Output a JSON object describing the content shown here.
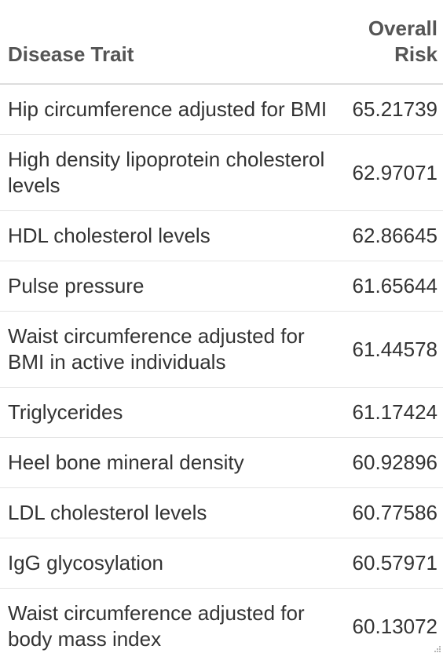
{
  "table": {
    "headers": {
      "trait": "Disease Trait",
      "risk_line1": "Overall",
      "risk_line2": "Risk"
    },
    "rows": [
      {
        "trait": "Hip circumference adjusted for BMI",
        "risk": "65.21739"
      },
      {
        "trait": "High density lipoprotein cholesterol levels",
        "risk": "62.97071"
      },
      {
        "trait": "HDL cholesterol levels",
        "risk": "62.86645"
      },
      {
        "trait": "Pulse pressure",
        "risk": "61.65644"
      },
      {
        "trait": "Waist circumference adjusted for BMI in active individuals",
        "risk": "61.44578"
      },
      {
        "trait": "Triglycerides",
        "risk": "61.17424"
      },
      {
        "trait": "Heel bone mineral density",
        "risk": "60.92896"
      },
      {
        "trait": "LDL cholesterol levels",
        "risk": "60.77586"
      },
      {
        "trait": "IgG glycosylation",
        "risk": "60.57971"
      },
      {
        "trait": "Waist circumference adjusted for body mass index",
        "risk": "60.13072"
      }
    ]
  },
  "icons": {
    "resize": "resize-grip-icon"
  }
}
